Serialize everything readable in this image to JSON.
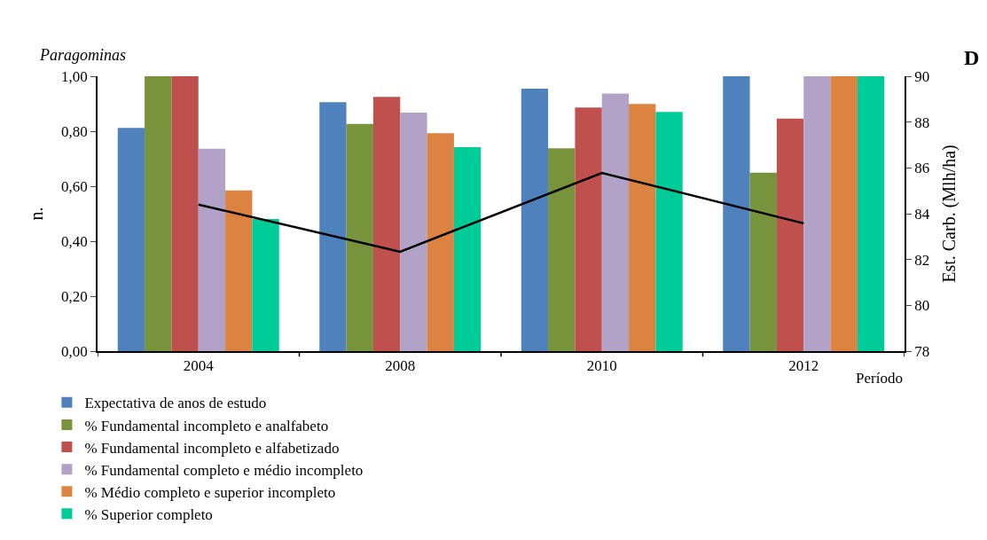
{
  "chart_data": {
    "type": "bar",
    "title": "Paragominas",
    "xlabel": "Período",
    "ylabel": "n.",
    "y2label": "Est. Carb. (Mlh/ha)",
    "annotations": [
      "D"
    ],
    "categories": [
      "2004",
      "2008",
      "2010",
      "2012"
    ],
    "series": [
      {
        "name": "Expectativa de anos de estudo",
        "color": "#4f81bd",
        "values": [
          0.812,
          0.906,
          0.955,
          1.0
        ]
      },
      {
        "name": "% Fundamental incompleto e analfabeto",
        "color": "#77933c",
        "values": [
          1.0,
          0.827,
          0.738,
          0.649
        ]
      },
      {
        "name": "% Fundamental incompleto e alfabetizado",
        "color": "#c0504d",
        "values": [
          1.0,
          0.925,
          0.886,
          0.846
        ]
      },
      {
        "name": "% Fundamental completo e médio incompleto",
        "color": "#b3a2c7",
        "values": [
          0.736,
          0.868,
          0.937,
          1.0
        ]
      },
      {
        "name": "% Médio completo e superior incompleto",
        "color": "#dd8341",
        "values": [
          0.585,
          0.793,
          0.899,
          1.0
        ]
      },
      {
        "name": "% Superior completo",
        "color": "#00cc99",
        "values": [
          0.481,
          0.742,
          0.87,
          1.0
        ]
      },
      {
        "type": "line",
        "axis": "y2",
        "color": "#000000",
        "values": [
          84.4,
          82.34,
          85.78,
          83.58
        ]
      }
    ],
    "ylim": [
      0,
      1
    ],
    "yticks": [
      {
        "value": 0,
        "label": "0,00"
      },
      {
        "value": 0.2,
        "label": "0,20"
      },
      {
        "value": 0.4,
        "label": "0,40"
      },
      {
        "value": 0.6,
        "label": "0,60"
      },
      {
        "value": 0.8,
        "label": "0,80"
      },
      {
        "value": 1,
        "label": "1,00"
      }
    ],
    "y2lim": [
      78,
      90
    ],
    "y2ticks": [
      78,
      80,
      82,
      84,
      86,
      88,
      90
    ],
    "legend": "bottom",
    "marker": "none",
    "line_style": "solid"
  }
}
